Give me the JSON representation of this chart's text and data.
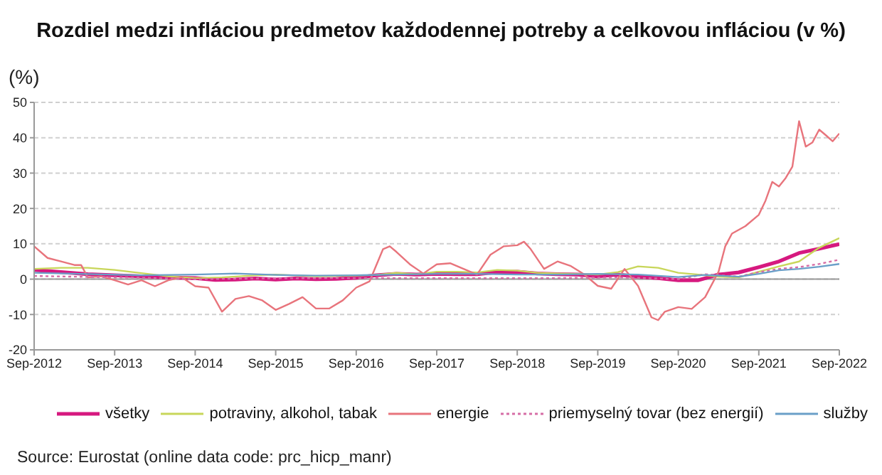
{
  "chart_data": {
    "type": "line",
    "title": "Rozdiel medzi infláciou predmetov každodennej potreby a celkovou infláciou (v %)",
    "ylabel": "(%)",
    "annotations": [
      "Source: Eurostat (online data code: prc_hicp_manr)"
    ],
    "xlim": [
      "2012-09",
      "2022-09"
    ],
    "xticks": [
      {
        "value": "2012-09",
        "label": "Sep-2012"
      },
      {
        "value": "2013-09",
        "label": "Sep-2013"
      },
      {
        "value": "2014-09",
        "label": "Sep-2014"
      },
      {
        "value": "2015-09",
        "label": "Sep-2015"
      },
      {
        "value": "2016-09",
        "label": "Sep-2016"
      },
      {
        "value": "2017-09",
        "label": "Sep-2017"
      },
      {
        "value": "2018-09",
        "label": "Sep-2018"
      },
      {
        "value": "2019-09",
        "label": "Sep-2019"
      },
      {
        "value": "2020-09",
        "label": "Sep-2020"
      },
      {
        "value": "2021-09",
        "label": "Sep-2021"
      },
      {
        "value": "2022-09",
        "label": "Sep-2022"
      }
    ],
    "ylim": [
      -20,
      50
    ],
    "yticks": [
      -20,
      -10,
      0,
      10,
      20,
      30,
      40,
      50
    ],
    "grid": "y",
    "legend": "bottom",
    "marker": "none",
    "series": [
      {
        "name": "všetky",
        "color": "#d6197f",
        "x": [
          "2012-09",
          "2013-01",
          "2013-05",
          "2013-09",
          "2014-01",
          "2014-05",
          "2014-09",
          "2014-12",
          "2015-03",
          "2015-06",
          "2015-09",
          "2015-12",
          "2016-03",
          "2016-06",
          "2016-09",
          "2016-12",
          "2017-03",
          "2017-06",
          "2017-09",
          "2017-12",
          "2018-03",
          "2018-06",
          "2018-09",
          "2018-12",
          "2019-03",
          "2019-06",
          "2019-09",
          "2019-12",
          "2020-03",
          "2020-06",
          "2020-09",
          "2020-12",
          "2021-03",
          "2021-06",
          "2021-09",
          "2021-12",
          "2022-03",
          "2022-06",
          "2022-09"
        ],
        "values": [
          2.6,
          2.0,
          1.4,
          1.1,
          0.8,
          0.5,
          0.3,
          -0.2,
          -0.1,
          0.2,
          -0.1,
          0.2,
          0.0,
          0.1,
          0.4,
          1.1,
          1.5,
          1.3,
          1.5,
          1.4,
          1.4,
          2.0,
          2.1,
          1.6,
          1.4,
          1.3,
          0.8,
          1.3,
          0.7,
          0.3,
          -0.3,
          -0.3,
          1.3,
          1.9,
          3.4,
          5.0,
          7.4,
          8.6,
          9.9
        ]
      },
      {
        "name": "potraviny, alkohol, tabak",
        "color": "#c8d65a",
        "x": [
          "2012-09",
          "2013-01",
          "2013-05",
          "2013-09",
          "2014-01",
          "2014-05",
          "2014-09",
          "2015-01",
          "2015-06",
          "2015-09",
          "2016-03",
          "2016-06",
          "2016-09",
          "2016-12",
          "2017-03",
          "2017-06",
          "2017-09",
          "2017-12",
          "2018-03",
          "2018-06",
          "2018-09",
          "2018-12",
          "2019-03",
          "2019-06",
          "2019-09",
          "2019-12",
          "2020-03",
          "2020-06",
          "2020-09",
          "2020-12",
          "2021-03",
          "2021-06",
          "2021-09",
          "2021-12",
          "2022-03",
          "2022-06",
          "2022-09"
        ],
        "values": [
          2.9,
          3.2,
          3.2,
          2.6,
          1.7,
          0.8,
          0.3,
          0.5,
          1.1,
          1.3,
          0.8,
          0.9,
          1.0,
          1.2,
          1.8,
          1.4,
          2.1,
          2.1,
          1.9,
          2.6,
          2.4,
          1.8,
          1.6,
          1.5,
          1.3,
          2.0,
          3.6,
          3.2,
          1.8,
          1.3,
          0.7,
          0.5,
          2.1,
          3.6,
          5.0,
          8.9,
          11.6
        ]
      },
      {
        "name": "energie",
        "color": "#e8747c",
        "x": [
          "2012-09",
          "2012-11",
          "2013-01",
          "2013-03",
          "2013-04",
          "2013-05",
          "2013-07",
          "2013-09",
          "2013-11",
          "2014-01",
          "2014-03",
          "2014-05",
          "2014-07",
          "2014-09",
          "2014-11",
          "2015-01",
          "2015-03",
          "2015-05",
          "2015-07",
          "2015-09",
          "2015-11",
          "2016-01",
          "2016-03",
          "2016-05",
          "2016-07",
          "2016-09",
          "2016-11",
          "2017-01",
          "2017-02",
          "2017-03",
          "2017-05",
          "2017-07",
          "2017-09",
          "2017-11",
          "2018-01",
          "2018-03",
          "2018-05",
          "2018-07",
          "2018-09",
          "2018-10",
          "2018-11",
          "2019-01",
          "2019-03",
          "2019-05",
          "2019-07",
          "2019-09",
          "2019-11",
          "2020-01",
          "2020-03",
          "2020-05",
          "2020-06",
          "2020-07",
          "2020-09",
          "2020-11",
          "2021-01",
          "2021-03",
          "2021-04",
          "2021-05",
          "2021-07",
          "2021-09",
          "2021-10",
          "2021-11",
          "2021-12",
          "2022-01",
          "2022-02",
          "2022-03",
          "2022-04",
          "2022-05",
          "2022-06",
          "2022-07",
          "2022-08",
          "2022-09"
        ],
        "values": [
          9.3,
          6,
          5,
          4,
          4,
          0.5,
          0.8,
          -0.3,
          -1.5,
          -0.3,
          -2,
          -0.3,
          0.5,
          -2,
          -2.4,
          -9.2,
          -5.6,
          -4.8,
          -6,
          -8.7,
          -7,
          -5.1,
          -8.3,
          -8.3,
          -6,
          -2.4,
          -0.6,
          8.5,
          9.3,
          7.7,
          4.2,
          1.6,
          4.2,
          4.5,
          2.9,
          1.3,
          6.9,
          9.3,
          9.6,
          10.6,
          8.5,
          2.9,
          5,
          3.7,
          1.3,
          -1.9,
          -2.7,
          2.9,
          -1.9,
          -10.8,
          -11.6,
          -9.2,
          -7.9,
          -8.4,
          -5.1,
          2.1,
          9.3,
          12.9,
          15,
          18.2,
          22.2,
          27.5,
          26.2,
          28.6,
          31.8,
          44.7,
          37.5,
          38.7,
          42.3,
          40.7,
          39,
          41.2
        ]
      },
      {
        "name": "priemyselný tovar (bez energií)",
        "color": "#d66ea6",
        "line_style": "dotted",
        "x": [
          "2012-09",
          "2013-06",
          "2014-01",
          "2014-09",
          "2015-06",
          "2016-06",
          "2017-03",
          "2018-03",
          "2019-03",
          "2019-12",
          "2020-06",
          "2020-09",
          "2021-01",
          "2021-06",
          "2021-09",
          "2021-12",
          "2022-03",
          "2022-06",
          "2022-09"
        ],
        "values": [
          0.9,
          0.6,
          0.4,
          0.0,
          0.2,
          0.3,
          0.3,
          0.3,
          0.3,
          0.5,
          0.2,
          0.0,
          1.4,
          0.7,
          2.0,
          2.9,
          3.4,
          4.3,
          5.5
        ]
      },
      {
        "name": "služby",
        "color": "#6a9fc8",
        "x": [
          "2012-09",
          "2013-06",
          "2014-01",
          "2014-09",
          "2015-03",
          "2015-09",
          "2016-03",
          "2016-09",
          "2017-03",
          "2017-09",
          "2018-03",
          "2018-09",
          "2019-03",
          "2019-09",
          "2020-03",
          "2020-09",
          "2021-01",
          "2021-06",
          "2021-09",
          "2021-12",
          "2022-03",
          "2022-06",
          "2022-09"
        ],
        "values": [
          1.8,
          1.4,
          1.1,
          1.3,
          1.6,
          1.2,
          1.0,
          1.1,
          1.3,
          1.5,
          1.5,
          1.3,
          1.3,
          1.5,
          1.3,
          0.6,
          1.2,
          0.7,
          1.5,
          2.5,
          2.9,
          3.5,
          4.3
        ]
      }
    ]
  }
}
